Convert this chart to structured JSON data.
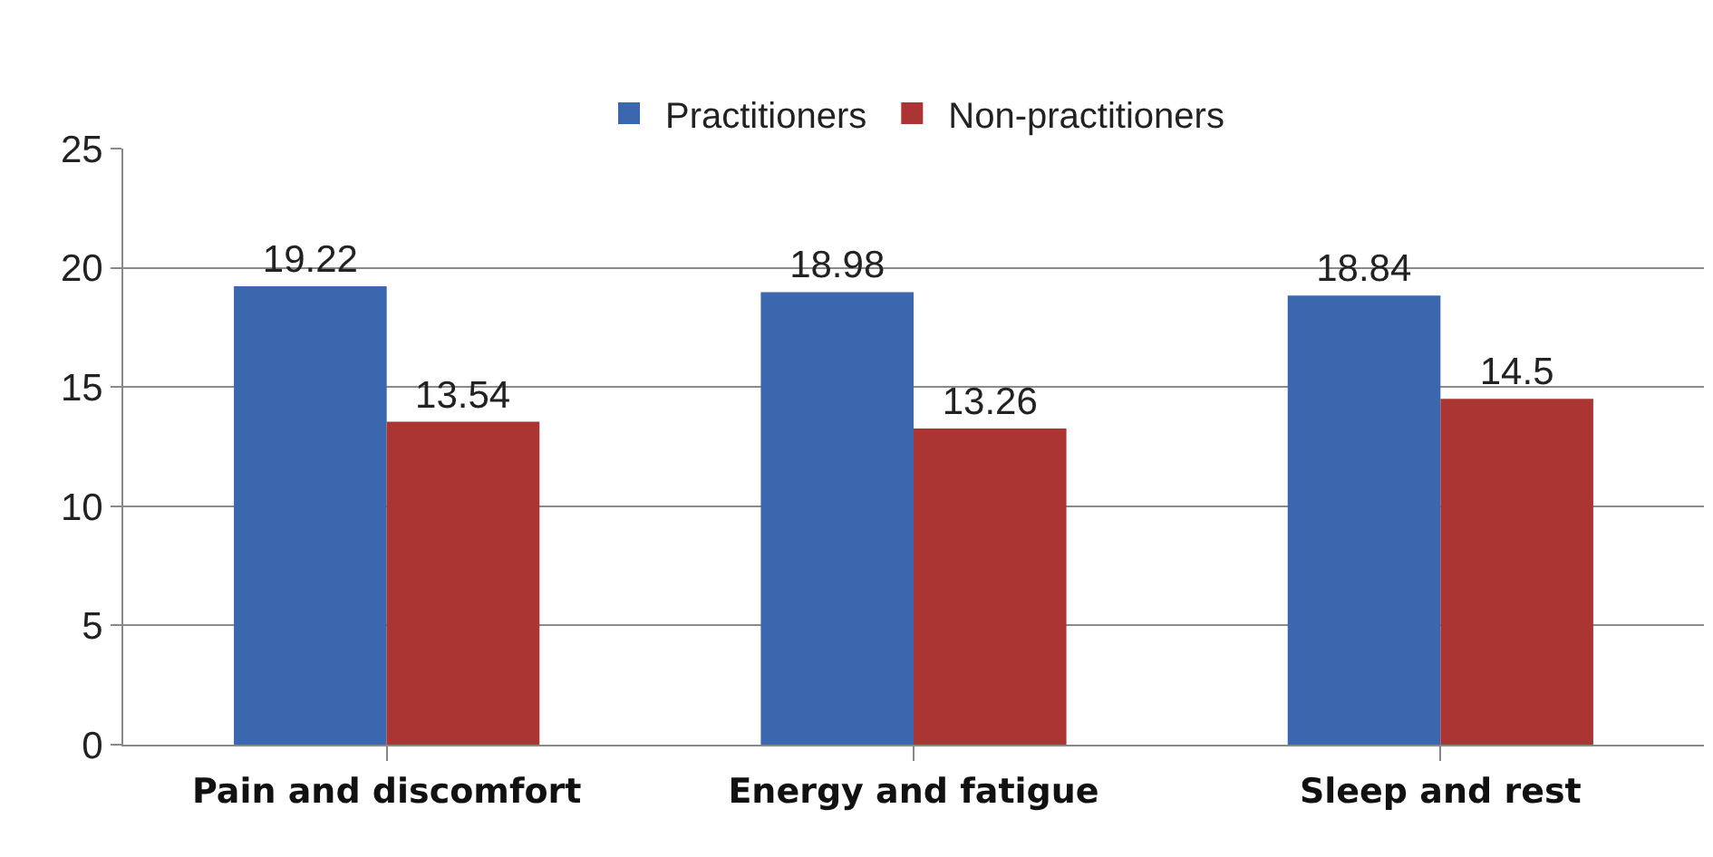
{
  "chart_data": {
    "type": "bar",
    "categories": [
      "Pain and discomfort",
      "Energy and fatigue",
      "Sleep and rest"
    ],
    "series": [
      {
        "name": "Practitioners",
        "color": "#3a67ae",
        "values": [
          19.22,
          18.98,
          18.84
        ]
      },
      {
        "name": "Non-practitioners",
        "color": "#ab3533",
        "values": [
          13.54,
          13.26,
          14.5
        ]
      }
    ],
    "ylim": [
      0,
      25
    ],
    "yticks": [
      0,
      5,
      10,
      15,
      20,
      25
    ],
    "grid": "y",
    "legend": "top",
    "data_labels": true
  }
}
